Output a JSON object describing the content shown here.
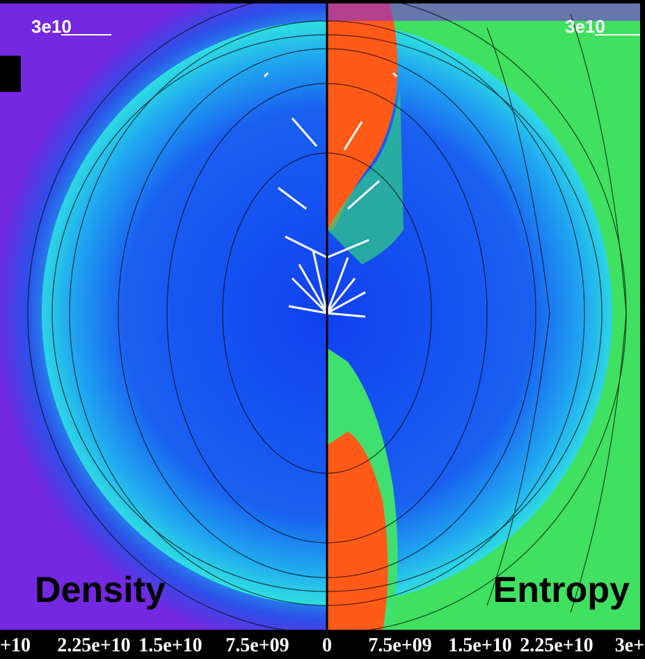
{
  "scale_labels": [
    "3e10",
    "3e10"
  ],
  "panel_labels": [
    "Density",
    "Entropy"
  ],
  "x_tick_labels": [
    "+10",
    "2.25e+10",
    "1.5e+10",
    "7.5e+09",
    "0",
    "7.5e+09",
    "1.5e+10",
    "2.25e+10",
    "3e+"
  ]
}
